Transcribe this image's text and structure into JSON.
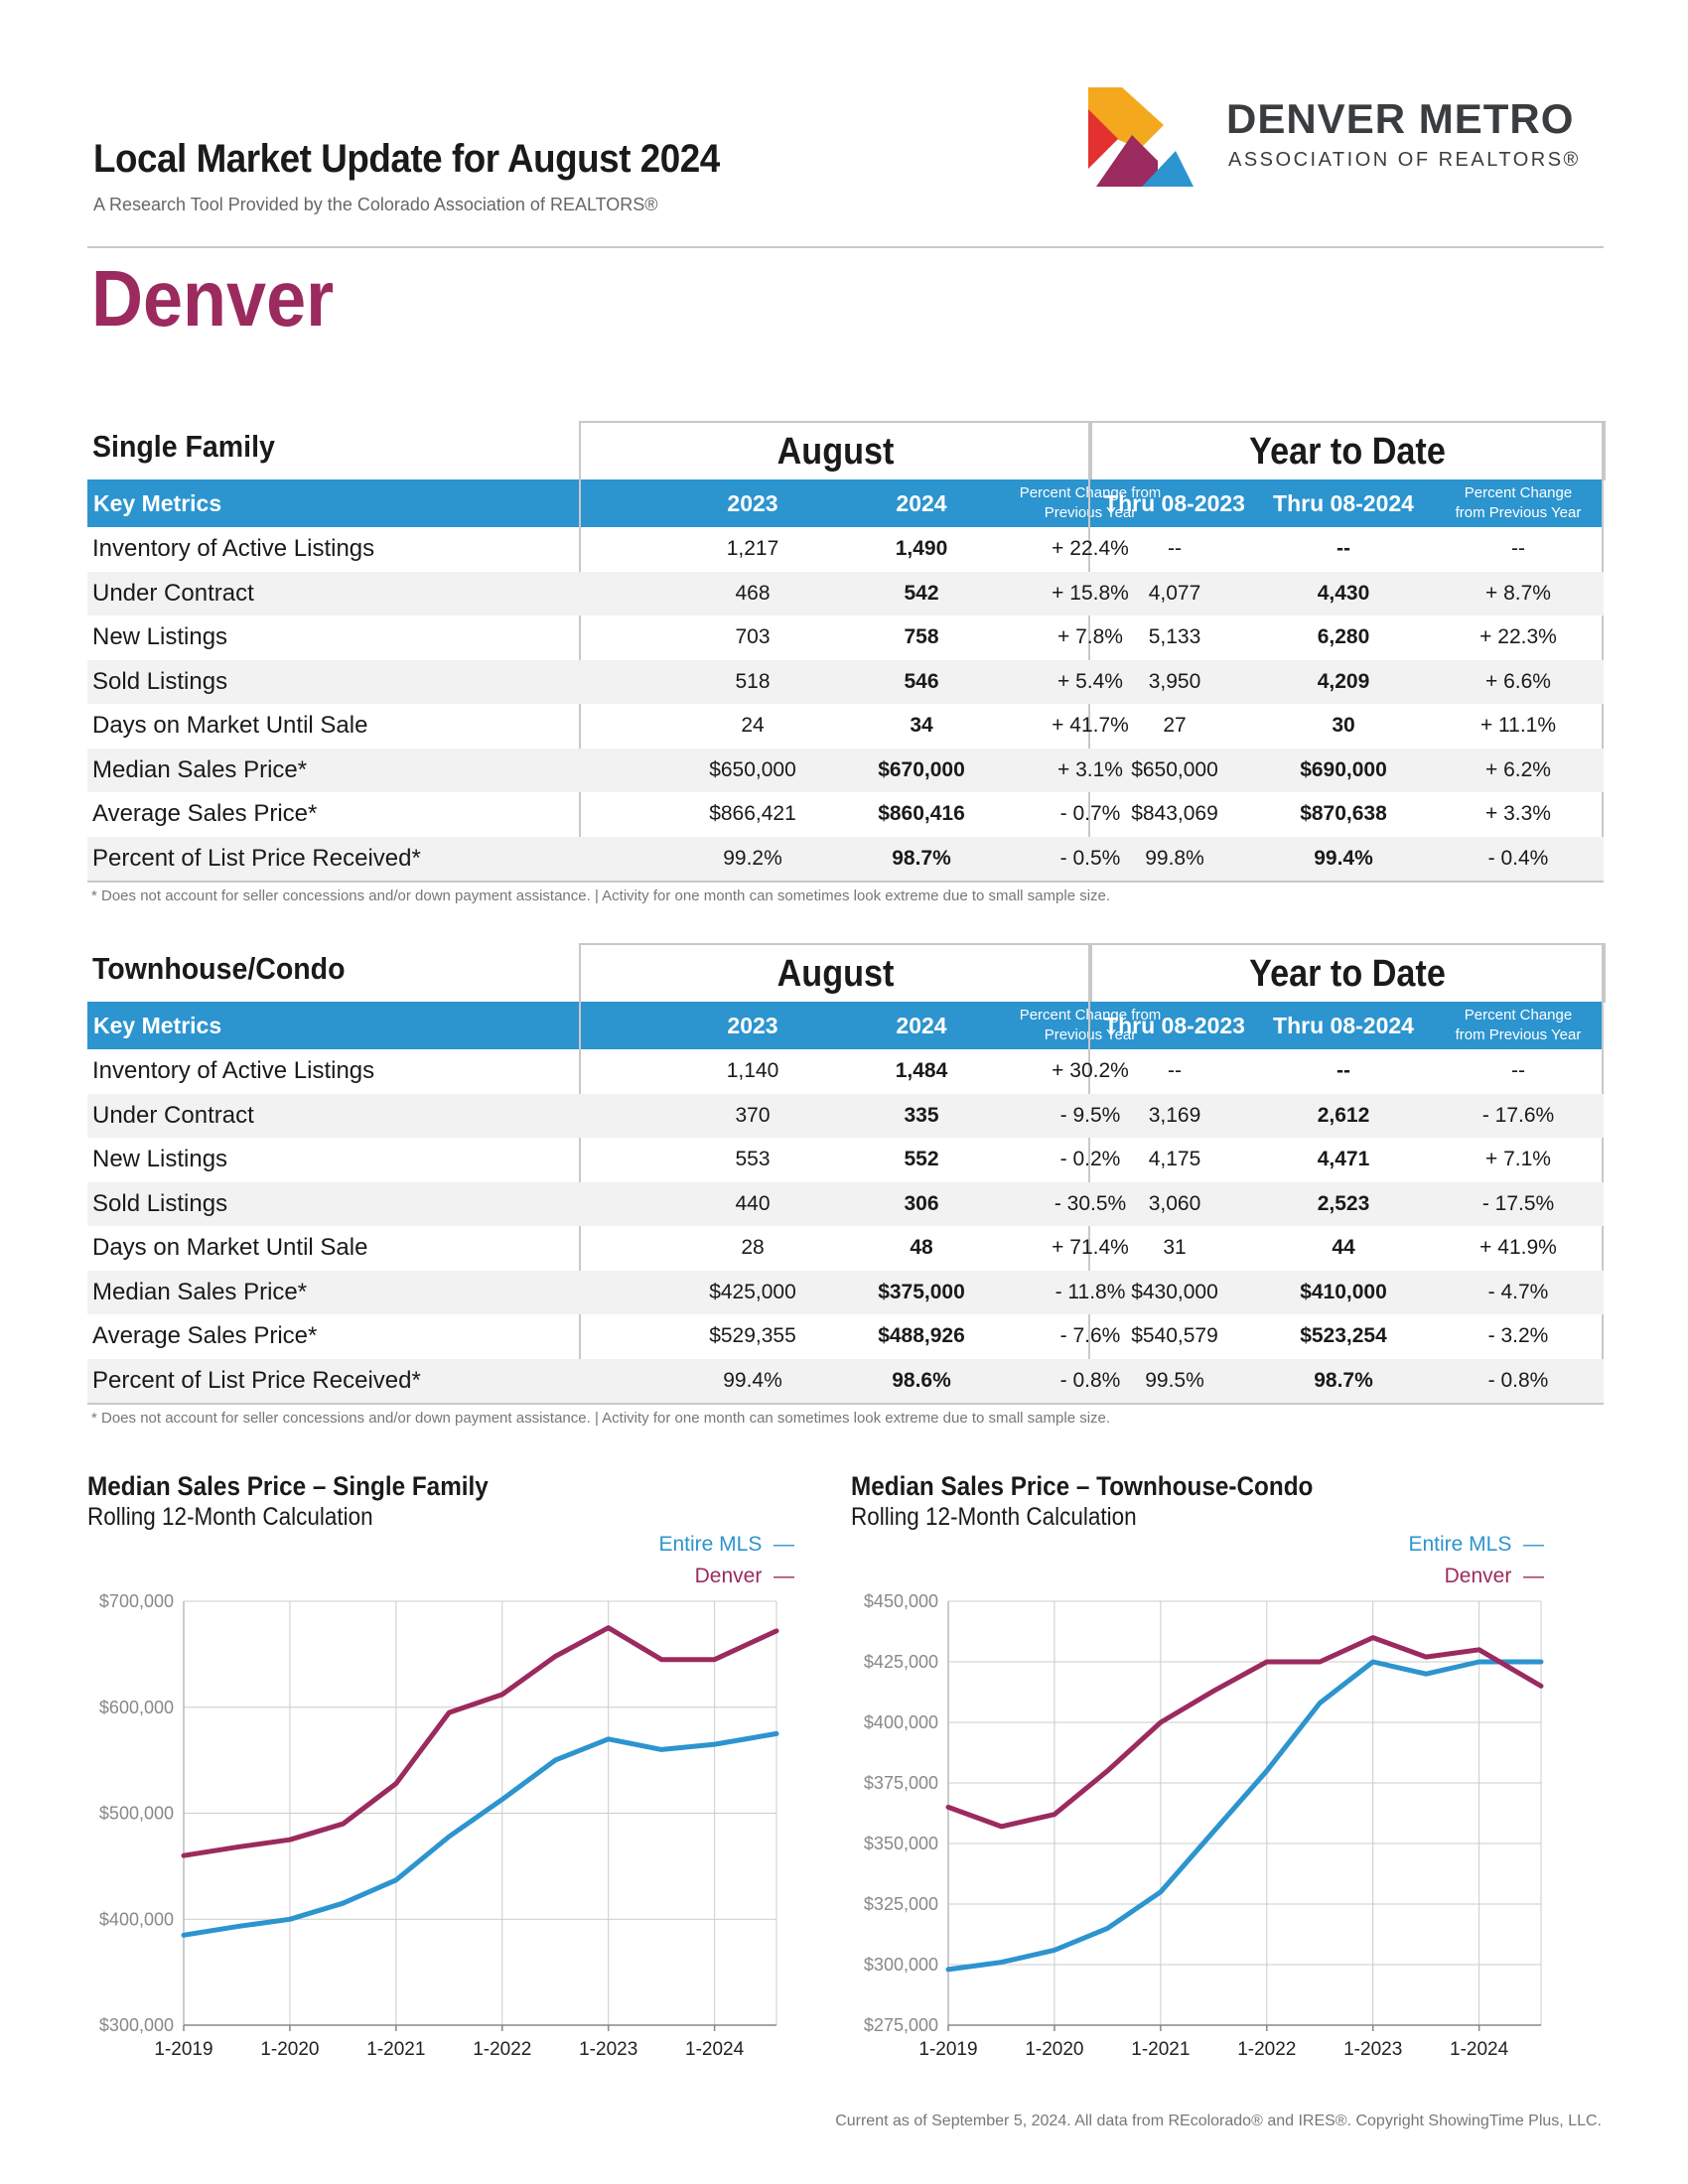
{
  "header": {
    "title": "Local Market Update for August 2024",
    "subtitle": "A Research Tool Provided by the Colorado Association of REALTORS®",
    "city": "Denver",
    "org_line1": "DENVER METRO",
    "org_line2": "ASSOCIATION OF REALTORS®"
  },
  "columns": {
    "key_metrics": "Key Metrics",
    "august": "August",
    "ytd": "Year to Date",
    "y2023": "2023",
    "y2024": "2024",
    "pct_change": "Percent Change from Previous Year",
    "thru2023": "Thru 08-2023",
    "thru2024": "Thru 08-2024"
  },
  "single_family": {
    "label": "Single Family",
    "rows": [
      {
        "metric": "Inventory of Active Listings",
        "a23": "1,217",
        "a24": "1,490",
        "apc": "+ 22.4%",
        "y23": "--",
        "y24": "--",
        "ypc": "--"
      },
      {
        "metric": "Under Contract",
        "a23": "468",
        "a24": "542",
        "apc": "+ 15.8%",
        "y23": "4,077",
        "y24": "4,430",
        "ypc": "+ 8.7%"
      },
      {
        "metric": "New Listings",
        "a23": "703",
        "a24": "758",
        "apc": "+ 7.8%",
        "y23": "5,133",
        "y24": "6,280",
        "ypc": "+ 22.3%"
      },
      {
        "metric": "Sold Listings",
        "a23": "518",
        "a24": "546",
        "apc": "+ 5.4%",
        "y23": "3,950",
        "y24": "4,209",
        "ypc": "+ 6.6%"
      },
      {
        "metric": "Days on Market Until Sale",
        "a23": "24",
        "a24": "34",
        "apc": "+ 41.7%",
        "y23": "27",
        "y24": "30",
        "ypc": "+ 11.1%"
      },
      {
        "metric": "Median Sales Price*",
        "a23": "$650,000",
        "a24": "$670,000",
        "apc": "+ 3.1%",
        "y23": "$650,000",
        "y24": "$690,000",
        "ypc": "+ 6.2%"
      },
      {
        "metric": "Average Sales Price*",
        "a23": "$866,421",
        "a24": "$860,416",
        "apc": "- 0.7%",
        "y23": "$843,069",
        "y24": "$870,638",
        "ypc": "+ 3.3%"
      },
      {
        "metric": "Percent of List Price Received*",
        "a23": "99.2%",
        "a24": "98.7%",
        "apc": "- 0.5%",
        "y23": "99.8%",
        "y24": "99.4%",
        "ypc": "- 0.4%"
      }
    ],
    "note": "* Does not account for seller concessions and/or down payment assistance.  |  Activity for one month can sometimes look extreme due to small sample size."
  },
  "townhouse": {
    "label": "Townhouse/Condo",
    "rows": [
      {
        "metric": "Inventory of Active Listings",
        "a23": "1,140",
        "a24": "1,484",
        "apc": "+ 30.2%",
        "y23": "--",
        "y24": "--",
        "ypc": "--"
      },
      {
        "metric": "Under Contract",
        "a23": "370",
        "a24": "335",
        "apc": "- 9.5%",
        "y23": "3,169",
        "y24": "2,612",
        "ypc": "- 17.6%"
      },
      {
        "metric": "New Listings",
        "a23": "553",
        "a24": "552",
        "apc": "- 0.2%",
        "y23": "4,175",
        "y24": "4,471",
        "ypc": "+ 7.1%"
      },
      {
        "metric": "Sold Listings",
        "a23": "440",
        "a24": "306",
        "apc": "- 30.5%",
        "y23": "3,060",
        "y24": "2,523",
        "ypc": "- 17.5%"
      },
      {
        "metric": "Days on Market Until Sale",
        "a23": "28",
        "a24": "48",
        "apc": "+ 71.4%",
        "y23": "31",
        "y24": "44",
        "ypc": "+ 41.9%"
      },
      {
        "metric": "Median Sales Price*",
        "a23": "$425,000",
        "a24": "$375,000",
        "apc": "- 11.8%",
        "y23": "$430,000",
        "y24": "$410,000",
        "ypc": "- 4.7%"
      },
      {
        "metric": "Average Sales Price*",
        "a23": "$529,355",
        "a24": "$488,926",
        "apc": "- 7.6%",
        "y23": "$540,579",
        "y24": "$523,254",
        "ypc": "- 3.2%"
      },
      {
        "metric": "Percent of List Price Received*",
        "a23": "99.4%",
        "a24": "98.6%",
        "apc": "- 0.8%",
        "y23": "99.5%",
        "y24": "98.7%",
        "ypc": "- 0.8%"
      }
    ],
    "note": "* Does not account for seller concessions and/or down payment assistance.  |  Activity for one month can sometimes look extreme due to small sample size."
  },
  "chart_data": [
    {
      "type": "line",
      "title": "Median Sales Price – Single Family",
      "subtitle": "Rolling 12-Month Calculation",
      "xlabel": "",
      "ylabel": "",
      "ylim": [
        300000,
        700000
      ],
      "yticks": [
        "$700,000",
        "$600,000",
        "$500,000",
        "$400,000",
        "$300,000"
      ],
      "xticks": [
        "1-2019",
        "1-2020",
        "1-2021",
        "1-2022",
        "1-2023",
        "1-2024"
      ],
      "x": [
        "1-2019",
        "7-2019",
        "1-2020",
        "7-2020",
        "1-2021",
        "7-2021",
        "1-2022",
        "7-2022",
        "1-2023",
        "7-2023",
        "1-2024",
        "8-2024"
      ],
      "series": [
        {
          "name": "Entire MLS",
          "color": "#2c94cf",
          "values": [
            385000,
            393000,
            400000,
            415000,
            437000,
            478000,
            513000,
            550000,
            570000,
            560000,
            565000,
            575000
          ]
        },
        {
          "name": "Denver",
          "color": "#9b2a5e",
          "values": [
            460000,
            468000,
            475000,
            490000,
            528000,
            595000,
            612000,
            648000,
            675000,
            645000,
            645000,
            672000
          ]
        }
      ]
    },
    {
      "type": "line",
      "title": "Median Sales Price – Townhouse-Condo",
      "subtitle": "Rolling 12-Month Calculation",
      "xlabel": "",
      "ylabel": "",
      "ylim": [
        275000,
        450000
      ],
      "yticks": [
        "$450,000",
        "$425,000",
        "$400,000",
        "$375,000",
        "$350,000",
        "$325,000",
        "$300,000",
        "$275,000"
      ],
      "xticks": [
        "1-2019",
        "1-2020",
        "1-2021",
        "1-2022",
        "1-2023",
        "1-2024"
      ],
      "x": [
        "1-2019",
        "7-2019",
        "1-2020",
        "7-2020",
        "1-2021",
        "7-2021",
        "1-2022",
        "7-2022",
        "1-2023",
        "7-2023",
        "1-2024",
        "8-2024"
      ],
      "series": [
        {
          "name": "Entire MLS",
          "color": "#2c94cf",
          "values": [
            298000,
            301000,
            306000,
            315000,
            330000,
            355000,
            380000,
            408000,
            425000,
            420000,
            425000,
            425000
          ]
        },
        {
          "name": "Denver",
          "color": "#9b2a5e",
          "values": [
            365000,
            357000,
            362000,
            380000,
            400000,
            413000,
            425000,
            425000,
            435000,
            427000,
            430000,
            415000
          ]
        }
      ]
    }
  ],
  "footer": "Current as of September 5, 2024. All data from REcolorado® and IRES®. Copyright ShowingTime Plus, LLC."
}
